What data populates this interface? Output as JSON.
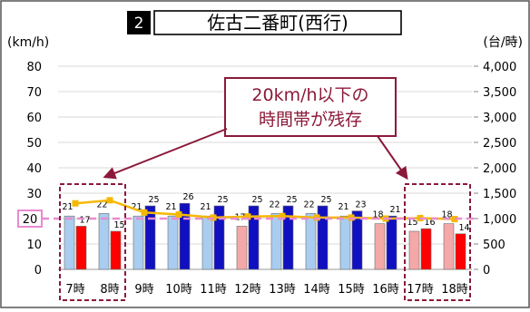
{
  "title": {
    "number": "2",
    "text": "佐古二番町(西行)"
  },
  "callout": {
    "lines": [
      "20km/h以下の",
      "時間帯が残存"
    ]
  },
  "chart_data": {
    "type": "bar",
    "categories": [
      "7時",
      "8時",
      "9時",
      "10時",
      "11時",
      "12時",
      "13時",
      "14時",
      "15時",
      "16時",
      "17時",
      "18時"
    ],
    "ylabel_left": "(km/h)",
    "ylabel_right": "(台/時)",
    "ylim_left": [
      0,
      80
    ],
    "ylim_right": [
      0,
      4000
    ],
    "yticks_left": [
      "0",
      "10",
      "20",
      "30",
      "40",
      "50",
      "60",
      "70",
      "80"
    ],
    "yticks_right": [
      "0",
      "500",
      "1,000",
      "1,500",
      "2,000",
      "2,500",
      "3,000",
      "3,500",
      "4,000"
    ],
    "reference_line": 20,
    "series": [
      {
        "values": [
          21,
          22,
          21,
          21,
          21,
          17,
          22,
          22,
          21,
          18,
          15,
          18
        ],
        "colors": [
          "#a9cdf0",
          "#a9cdf0",
          "#a9cdf0",
          "#a9cdf0",
          "#a9cdf0",
          "#f4a8a8",
          "#a9cdf0",
          "#a9cdf0",
          "#a9cdf0",
          "#f4a8a8",
          "#f4a8a8",
          "#f4a8a8"
        ]
      },
      {
        "values": [
          17,
          15,
          25,
          26,
          25,
          25,
          25,
          25,
          23,
          21,
          16,
          14
        ],
        "colors": [
          "#ff0000",
          "#ff0000",
          "#1010c0",
          "#1010c0",
          "#1010c0",
          "#1010c0",
          "#1010c0",
          "#1010c0",
          "#1010c0",
          "#1010c0",
          "#ff0000",
          "#ff0000"
        ]
      },
      {
        "type": "line",
        "axis": "right",
        "color": "#f5b800",
        "values": [
          1300,
          1360,
          1120,
          1080,
          1020,
          1040,
          1050,
          1020,
          1020,
          1000,
          1010,
          990
        ]
      }
    ],
    "highlight_groups": [
      [
        0,
        1
      ],
      [
        10,
        11
      ]
    ],
    "colors": {
      "reference": "#e98ad0",
      "box": "#8b1a3a",
      "arrow": "#8b1a3a"
    }
  }
}
